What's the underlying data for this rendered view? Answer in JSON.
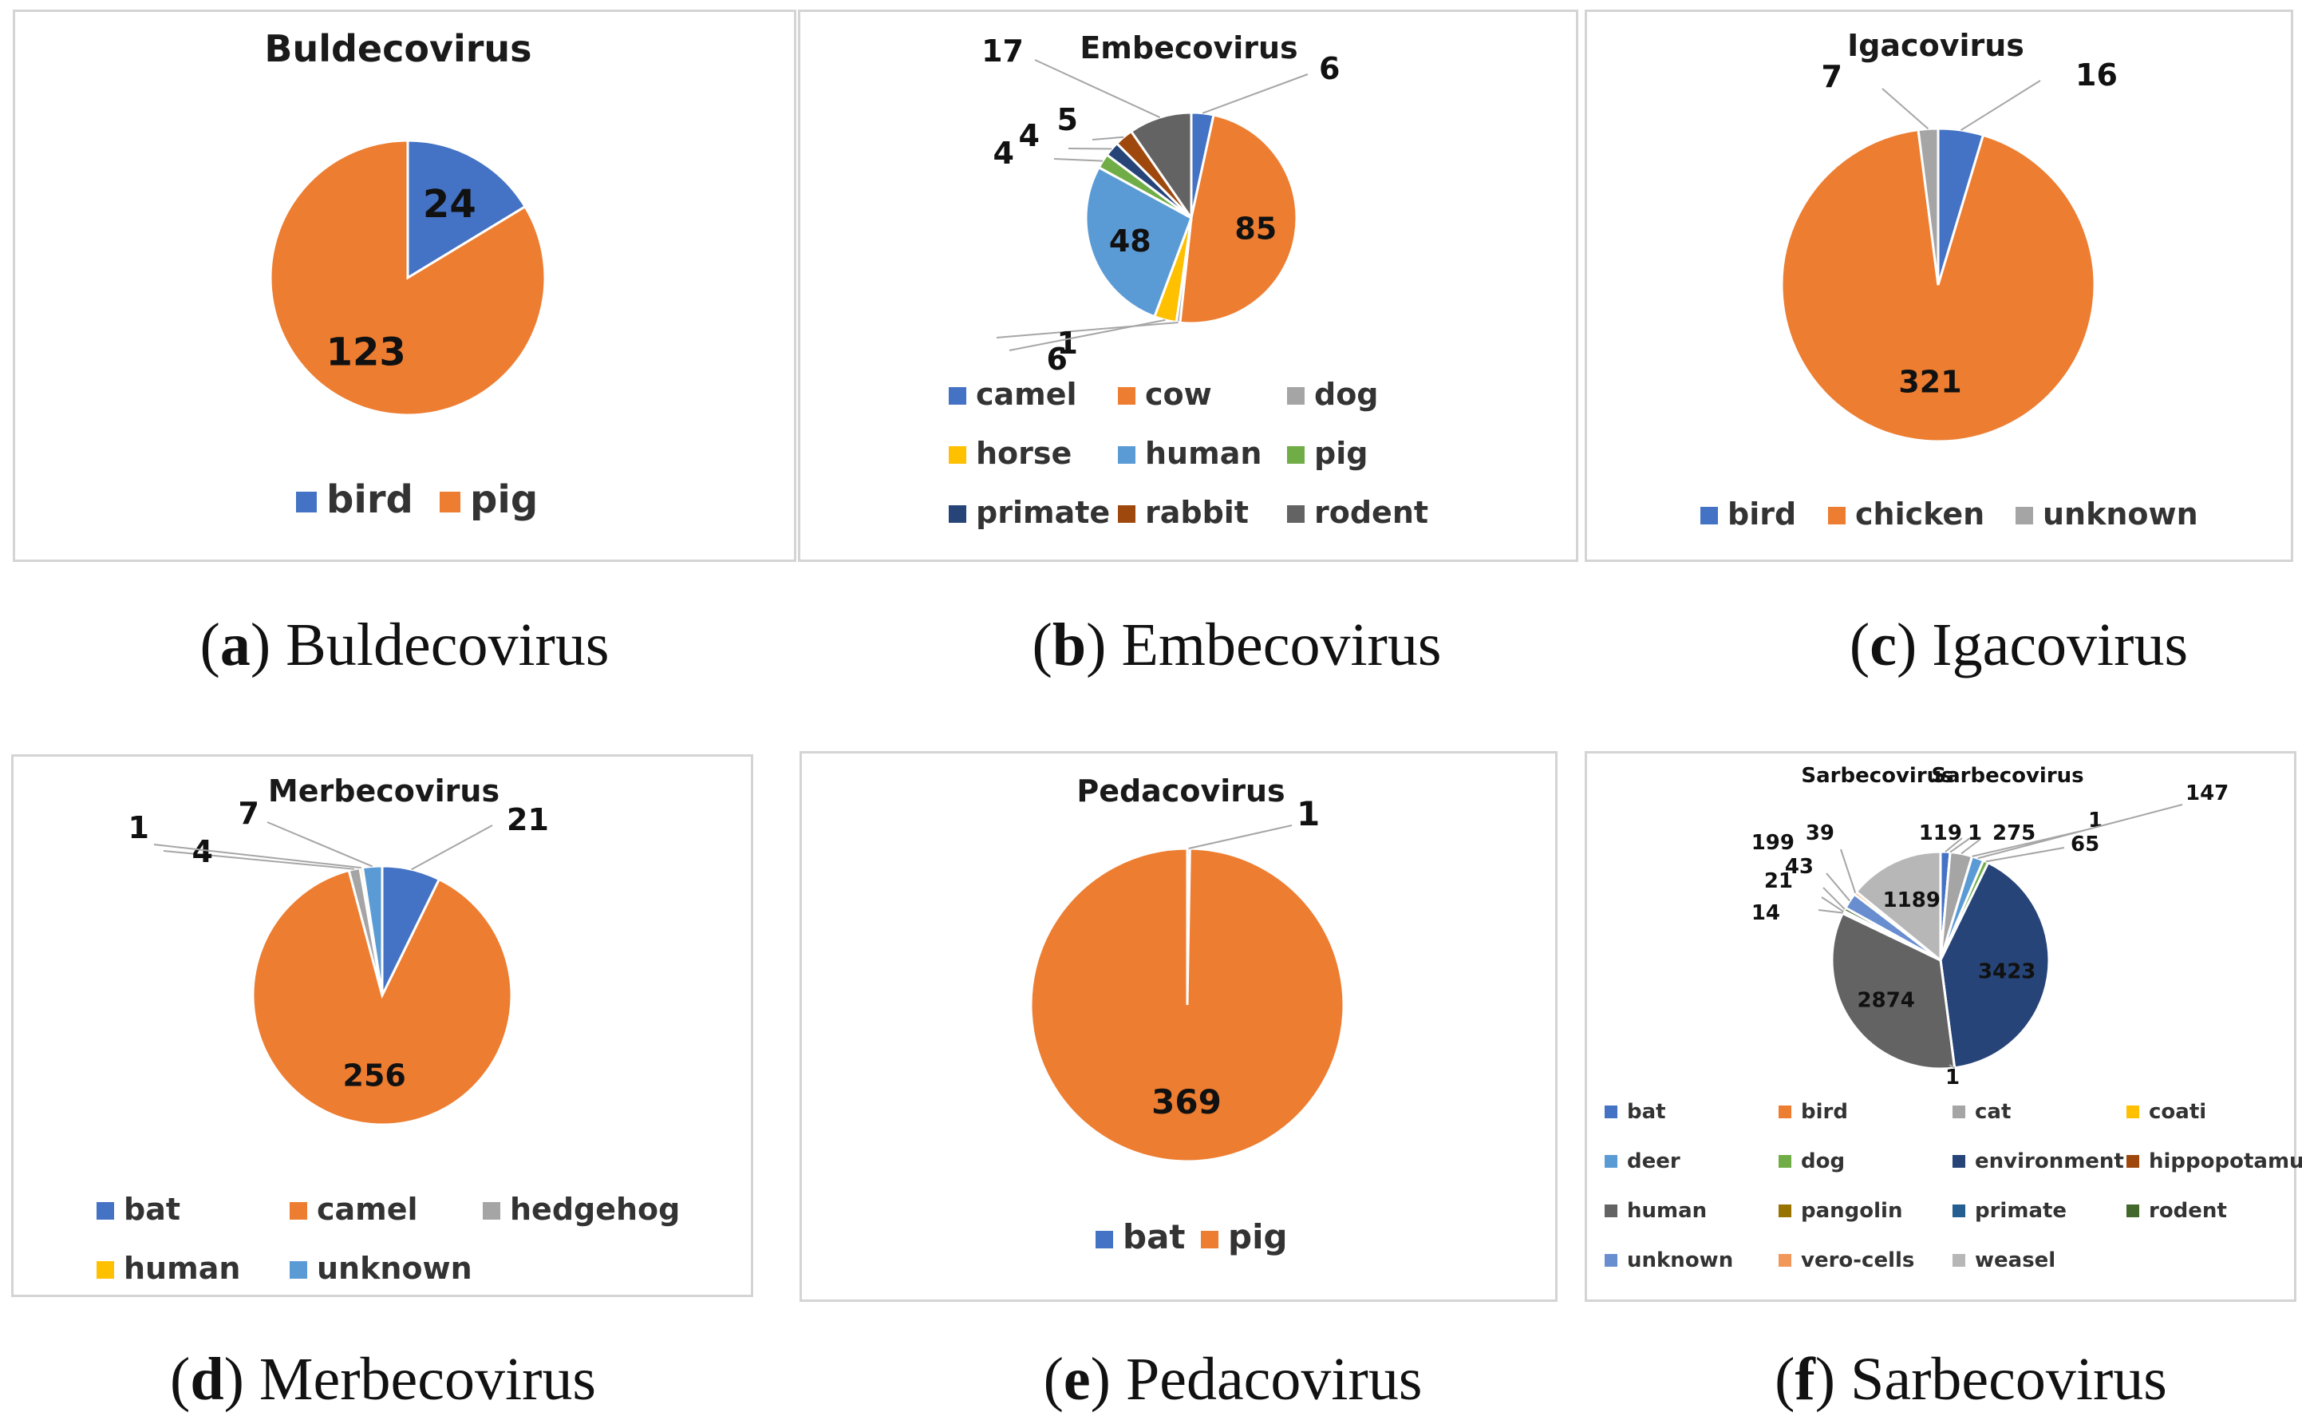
{
  "chart_data": [
    {
      "id": "a",
      "type": "pie",
      "title": "Buldecovirus",
      "caption_letter": "a",
      "caption_text": "Buldecovirus",
      "series": [
        {
          "name": "bird",
          "value": 24,
          "color": "#4472C4"
        },
        {
          "name": "pig",
          "value": 123,
          "color": "#ED7D31"
        }
      ],
      "legend": [
        "bird",
        "pig"
      ],
      "legend_position": "bottom"
    },
    {
      "id": "b",
      "type": "pie",
      "title": "Embecovirus",
      "caption_letter": "b",
      "caption_text": "Embecovirus",
      "series": [
        {
          "name": "camel",
          "value": 6,
          "color": "#4472C4"
        },
        {
          "name": "cow",
          "value": 85,
          "color": "#ED7D31"
        },
        {
          "name": "dog",
          "value": 1,
          "color": "#A5A5A5"
        },
        {
          "name": "horse",
          "value": 6,
          "color": "#FFC000"
        },
        {
          "name": "human",
          "value": 48,
          "color": "#5B9BD5"
        },
        {
          "name": "pig",
          "value": 4,
          "color": "#70AD47"
        },
        {
          "name": "primate",
          "value": 4,
          "color": "#264478"
        },
        {
          "name": "rabbit",
          "value": 5,
          "color": "#9E480E"
        },
        {
          "name": "rodent",
          "value": 17,
          "color": "#636363"
        }
      ],
      "legend": [
        "camel",
        "cow",
        "dog",
        "horse",
        "human",
        "pig",
        "primate",
        "rabbit",
        "rodent"
      ],
      "legend_position": "bottom"
    },
    {
      "id": "c",
      "type": "pie",
      "title": "Igacovirus",
      "caption_letter": "c",
      "caption_text": "Igacovirus",
      "series": [
        {
          "name": "bird",
          "value": 16,
          "color": "#4472C4"
        },
        {
          "name": "chicken",
          "value": 321,
          "color": "#ED7D31"
        },
        {
          "name": "unknown",
          "value": 7,
          "color": "#A5A5A5"
        }
      ],
      "legend": [
        "bird",
        "chicken",
        "unknown"
      ],
      "legend_position": "bottom"
    },
    {
      "id": "d",
      "type": "pie",
      "title": "Merbecovirus",
      "caption_letter": "d",
      "caption_text": "Merbecovirus",
      "series": [
        {
          "name": "bat",
          "value": 21,
          "color": "#4472C4"
        },
        {
          "name": "camel",
          "value": 256,
          "color": "#ED7D31"
        },
        {
          "name": "hedgehog",
          "value": 4,
          "color": "#A5A5A5"
        },
        {
          "name": "human",
          "value": 1,
          "color": "#FFC000"
        },
        {
          "name": "unknown",
          "value": 7,
          "color": "#5B9BD5"
        }
      ],
      "legend": [
        "bat",
        "camel",
        "hedgehog",
        "human",
        "unknown"
      ],
      "legend_position": "bottom"
    },
    {
      "id": "e",
      "type": "pie",
      "title": "Pedacovirus",
      "caption_letter": "e",
      "caption_text": "Pedacovirus",
      "series": [
        {
          "name": "bat",
          "value": 1,
          "color": "#4472C4"
        },
        {
          "name": "pig",
          "value": 369,
          "color": "#ED7D31"
        }
      ],
      "legend": [
        "bat",
        "pig"
      ],
      "legend_position": "bottom"
    },
    {
      "id": "f",
      "type": "pie",
      "title": "Sarbecovirus",
      "caption_letter": "f",
      "caption_text": "Sarbecovirus",
      "series_labels": [
        "Sarbecovirus",
        "Sarbecovirus"
      ],
      "series": [
        {
          "name": "bat",
          "value": 119,
          "color": "#4472C4"
        },
        {
          "name": "bird",
          "value": 1,
          "color": "#ED7D31"
        },
        {
          "name": "cat",
          "value": 275,
          "color": "#A5A5A5"
        },
        {
          "name": "coati",
          "value": 1,
          "color": "#FFC000"
        },
        {
          "name": "deer",
          "value": 147,
          "color": "#5B9BD5"
        },
        {
          "name": "dog",
          "value": 65,
          "color": "#70AD47"
        },
        {
          "name": "environment",
          "value": 3423,
          "color": "#264478"
        },
        {
          "name": "hippopotamus",
          "value": 1,
          "color": "#9E480E"
        },
        {
          "name": "human",
          "value": 2874,
          "color": "#636363"
        },
        {
          "name": "pangolin",
          "value": 14,
          "color": "#997300"
        },
        {
          "name": "primate",
          "value": 21,
          "color": "#255E91"
        },
        {
          "name": "rodent",
          "value": 43,
          "color": "#43682B"
        },
        {
          "name": "unknown",
          "value": 199,
          "color": "#698ED0"
        },
        {
          "name": "vero-cells",
          "value": 39,
          "color": "#F1975A"
        },
        {
          "name": "weasel",
          "value": 1189,
          "color": "#B7B7B7"
        }
      ],
      "legend": [
        "bat",
        "bird",
        "cat",
        "coati",
        "deer",
        "dog",
        "environment",
        "hippopotamus",
        "human",
        "pangolin",
        "primate",
        "rodent",
        "unknown",
        "vero-cells",
        "weasel"
      ],
      "legend_position": "bottom"
    }
  ]
}
